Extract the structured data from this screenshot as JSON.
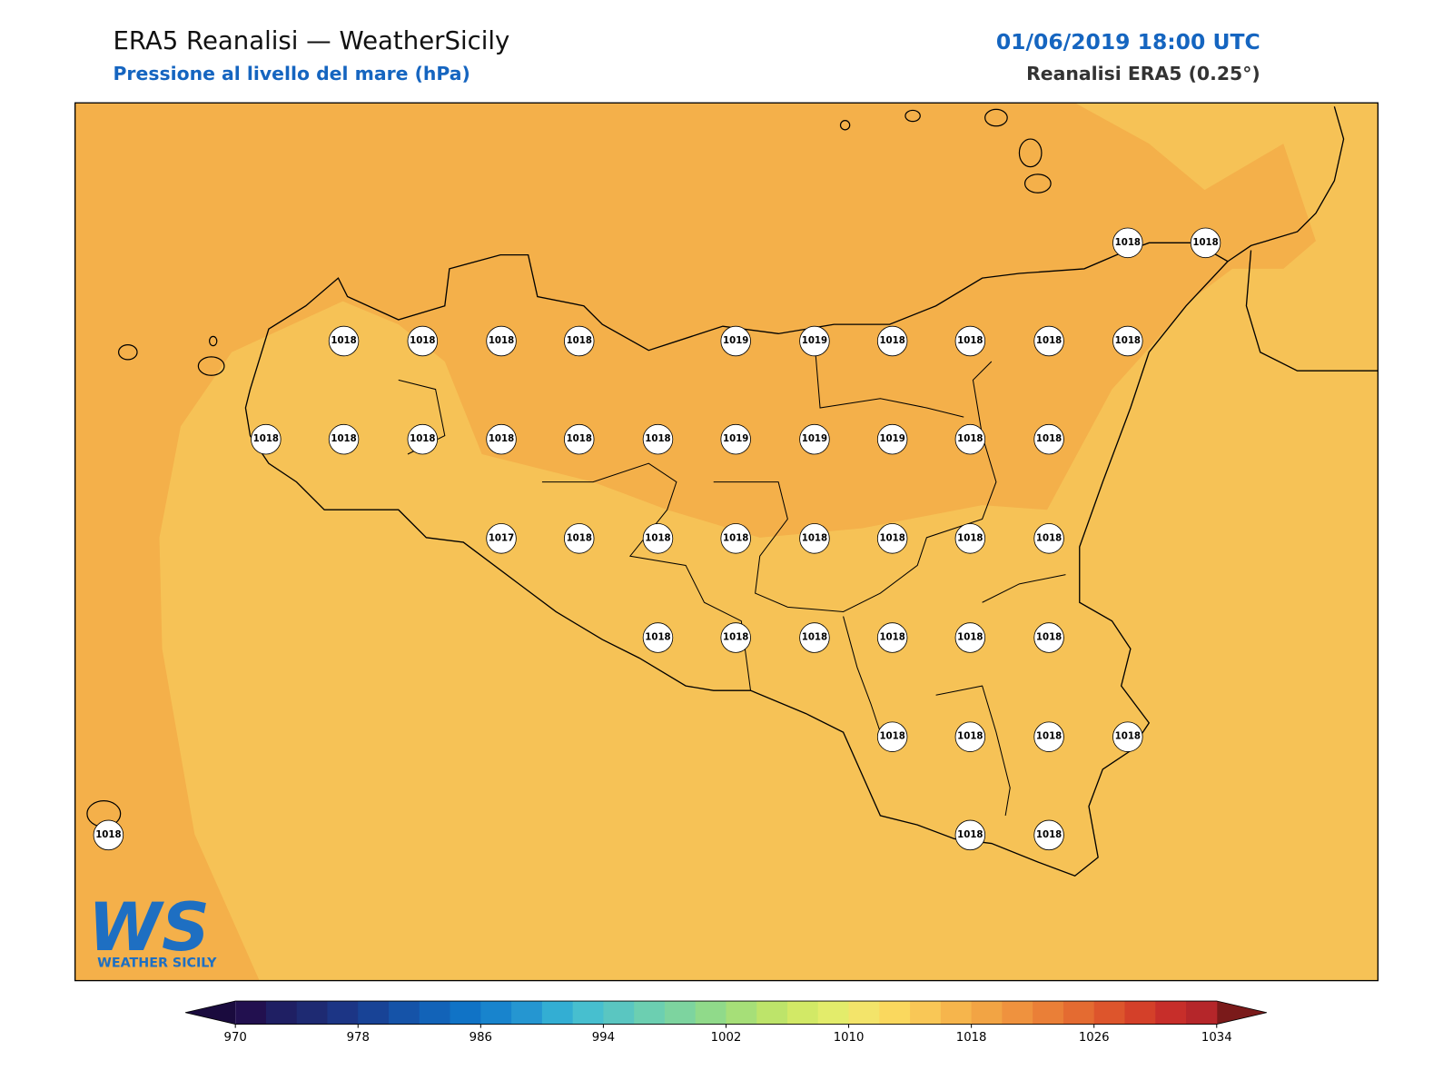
{
  "header": {
    "title": "ERA5 Reanalisi — WeatherSicily",
    "subtitle": "Pressione al livello del mare (hPa)",
    "datetime": "01/06/2019 18:00 UTC",
    "source": "Reanalisi ERA5 (0.25°)"
  },
  "stations": [
    1018,
    1018,
    1018,
    1018,
    1018,
    1018,
    1019,
    1019,
    1018,
    1018,
    1018,
    1018,
    1018,
    1018,
    1018,
    1018,
    1018,
    1018,
    1019,
    1019,
    1019,
    1018,
    1018,
    1017,
    1018,
    1018,
    1018,
    1018,
    1018,
    1018,
    1018,
    1018,
    1018,
    1018,
    1018,
    1018,
    1018,
    1018,
    1018,
    1018,
    1018,
    1018,
    1018,
    1018
  ],
  "colorbar": {
    "range": [
      970,
      1034
    ],
    "ticks": [
      970,
      978,
      986,
      994,
      1002,
      1010,
      1018,
      1026,
      1034
    ],
    "colors": [
      "#22104f",
      "#1f1f63",
      "#1e2a72",
      "#1c3585",
      "#184396",
      "#1553a8",
      "#1263b8",
      "#1073c6",
      "#1884cd",
      "#2596d1",
      "#33aed3",
      "#47bfcf",
      "#5ac6c1",
      "#6ccfb1",
      "#7dd49f",
      "#90da8a",
      "#a6df78",
      "#bde46a",
      "#d2e966",
      "#e3ec6b",
      "#f3e46a",
      "#fad85e",
      "#f9c756",
      "#f6b54c",
      "#f2a444",
      "#ef923e",
      "#ea7f37",
      "#e46b31",
      "#dd552c",
      "#d44029",
      "#c72e2a",
      "#b5262a"
    ],
    "under": "#1a0b3e",
    "over": "#7a1a1a"
  },
  "logo": {
    "mark": "WS",
    "name": "WEATHER SICILY"
  }
}
